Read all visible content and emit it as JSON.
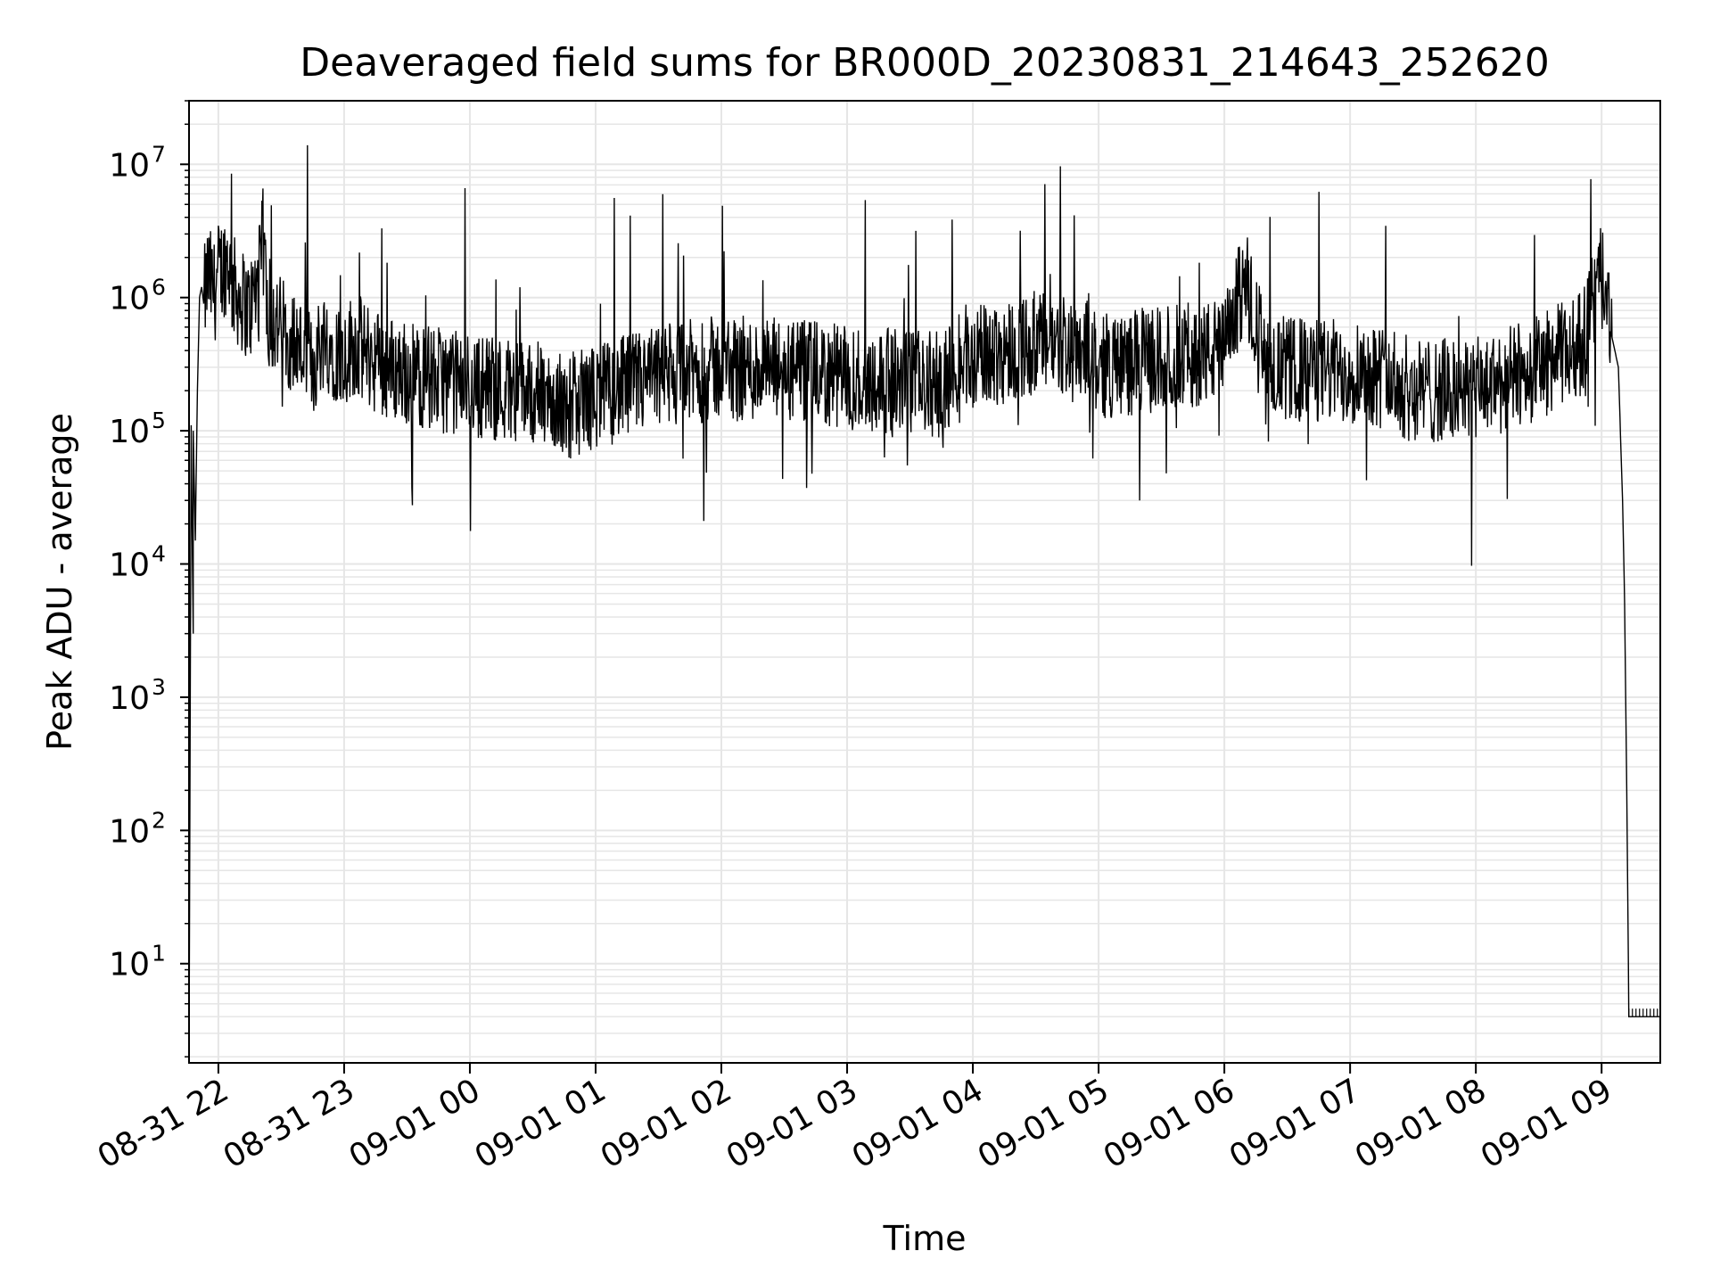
{
  "chart_data": {
    "type": "line",
    "title": "Deaveraged field sums for BR000D_20230831_214643_252620",
    "xlabel": "Time",
    "ylabel": "Peak ADU - average",
    "yscale": "log",
    "ylim": [
      1.8,
      30000000
    ],
    "xlim": [
      "2023-08-31 21:46",
      "2023-09-01 09:28"
    ],
    "grid": true,
    "line_color": "#000000",
    "grid_color": "#e6e6e6",
    "x_ticks": [
      {
        "value": "2023-08-31 22:00",
        "label": "08-31 22"
      },
      {
        "value": "2023-08-31 23:00",
        "label": "08-31 23"
      },
      {
        "value": "2023-09-01 00:00",
        "label": "09-01 00"
      },
      {
        "value": "2023-09-01 01:00",
        "label": "09-01 01"
      },
      {
        "value": "2023-09-01 02:00",
        "label": "09-01 02"
      },
      {
        "value": "2023-09-01 03:00",
        "label": "09-01 03"
      },
      {
        "value": "2023-09-01 04:00",
        "label": "09-01 04"
      },
      {
        "value": "2023-09-01 05:00",
        "label": "09-01 05"
      },
      {
        "value": "2023-09-01 06:00",
        "label": "09-01 06"
      },
      {
        "value": "2023-09-01 07:00",
        "label": "09-01 07"
      },
      {
        "value": "2023-09-01 08:00",
        "label": "09-01 08"
      },
      {
        "value": "2023-09-01 09:00",
        "label": "09-01 09"
      }
    ],
    "y_ticks": [
      {
        "value": 10,
        "base": "10",
        "exp": "1"
      },
      {
        "value": 100,
        "base": "10",
        "exp": "2"
      },
      {
        "value": 1000,
        "base": "10",
        "exp": "3"
      },
      {
        "value": 10000,
        "base": "10",
        "exp": "4"
      },
      {
        "value": 100000,
        "base": "10",
        "exp": "5"
      },
      {
        "value": 1000000,
        "base": "10",
        "exp": "6"
      },
      {
        "value": 10000000,
        "base": "10",
        "exp": "7"
      }
    ],
    "series": [
      {
        "x": [
          "2023-08-31 21:46",
          "2023-08-31 21:47",
          "2023-08-31 21:48",
          "2023-08-31 21:48",
          "2023-08-31 21:49",
          "2023-08-31 21:50",
          "2023-08-31 21:51",
          "2023-08-31 21:52",
          "2023-08-31 21:53",
          "2023-08-31 21:55",
          "2023-08-31 21:58",
          "2023-08-31 22:00",
          "2023-08-31 22:05",
          "2023-08-31 22:06",
          "2023-08-31 22:10",
          "2023-08-31 22:15",
          "2023-08-31 22:20",
          "2023-08-31 22:21",
          "2023-08-31 22:24",
          "2023-08-31 22:30",
          "2023-08-31 22:40",
          "2023-08-31 22:45",
          "2023-08-31 22:50",
          "2023-08-31 23:00",
          "2023-08-31 23:04",
          "2023-08-31 23:20",
          "2023-08-31 23:40",
          "2023-09-01 00:00",
          "2023-09-01 00:30",
          "2023-09-01 00:45",
          "2023-09-01 01:00",
          "2023-09-01 01:30",
          "2023-09-01 02:00",
          "2023-09-01 02:30",
          "2023-09-01 03:00",
          "2023-09-01 03:30",
          "2023-09-01 03:45",
          "2023-09-01 04:00",
          "2023-09-01 04:30",
          "2023-09-01 04:55",
          "2023-09-01 05:00",
          "2023-09-01 05:30",
          "2023-09-01 06:00",
          "2023-09-01 06:10",
          "2023-09-01 06:20",
          "2023-09-01 06:40",
          "2023-09-01 07:00",
          "2023-09-01 07:05",
          "2023-09-01 07:30",
          "2023-09-01 08:00",
          "2023-09-01 08:30",
          "2023-09-01 08:50",
          "2023-09-01 09:00",
          "2023-09-01 09:05",
          "2023-09-01 09:08",
          "2023-09-01 09:10",
          "2023-09-01 09:11",
          "2023-09-01 09:12",
          "2023-09-01 09:13",
          "2023-09-01 09:28"
        ],
        "y": [
          1.8,
          110000,
          3000,
          100000,
          15000,
          200000,
          1000000,
          1200000,
          900000,
          1500000,
          1100000,
          1500000,
          2000000,
          1300000,
          1000000,
          800000,
          1500000,
          3000000,
          700000,
          600000,
          400000,
          300000,
          500000,
          350000,
          450000,
          300000,
          250000,
          220000,
          200000,
          150000,
          180000,
          250000,
          300000,
          280000,
          250000,
          230000,
          220000,
          350000,
          450000,
          450000,
          300000,
          350000,
          400000,
          1500000,
          300000,
          280000,
          280000,
          300000,
          200000,
          200000,
          300000,
          450000,
          1400000,
          500000,
          300000,
          30000,
          5000,
          200,
          4,
          4
        ]
      }
    ]
  }
}
